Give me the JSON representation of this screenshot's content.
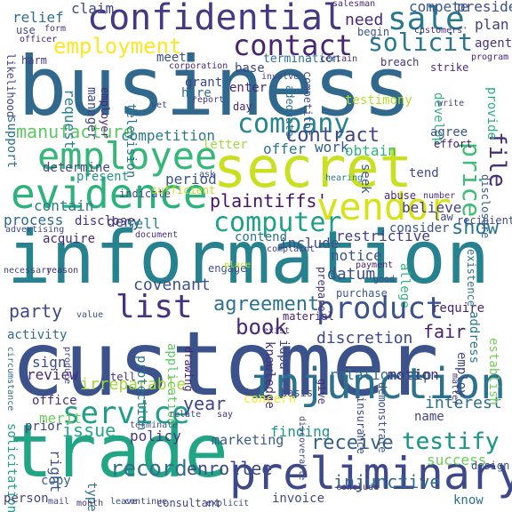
{
  "words": [
    {
      "text": "customer",
      "color": "#3b528b"
    },
    {
      "text": "information",
      "color": "#26828e"
    },
    {
      "text": "business",
      "color": "#31688e"
    },
    {
      "text": "trade",
      "color": "#21a585"
    },
    {
      "text": "secret",
      "color": "#c8e020"
    },
    {
      "text": "preliminary",
      "color": "#3e4989"
    },
    {
      "text": "injunction",
      "color": "#2c728e"
    },
    {
      "text": "confidential",
      "color": "#443983"
    },
    {
      "text": "evidence",
      "color": "#2db27d"
    },
    {
      "text": "employee",
      "color": "#35b779"
    },
    {
      "text": "vendor",
      "color": "#d8e219"
    },
    {
      "text": "service",
      "color": "#1f9e89"
    },
    {
      "text": "computer",
      "color": "#1fa088"
    },
    {
      "text": "product",
      "color": "#3b528b"
    },
    {
      "text": "sale",
      "color": "#2a788e"
    },
    {
      "text": "contact",
      "color": "#482475"
    },
    {
      "text": "list",
      "color": "#46327e"
    },
    {
      "text": "company",
      "color": "#25848e"
    },
    {
      "text": "employment",
      "color": "#fde725"
    },
    {
      "text": "solicit",
      "color": "#2a768e"
    },
    {
      "text": "price",
      "color": "#3fbc73"
    },
    {
      "text": "file",
      "color": "#472d7b"
    },
    {
      "text": "agreement",
      "color": "#2c728e"
    },
    {
      "text": "contract",
      "color": "#404688"
    },
    {
      "text": "testify",
      "color": "#1f978b"
    },
    {
      "text": "receive",
      "color": "#355f8d"
    },
    {
      "text": "record",
      "color": "#2e6e8e"
    },
    {
      "text": "enrollee",
      "color": "#3e4a89"
    },
    {
      "text": "plaintiffs'",
      "color": "#471365"
    },
    {
      "text": "book",
      "color": "#482878"
    },
    {
      "text": "injunctive",
      "color": "#31688e"
    },
    {
      "text": "show",
      "color": "#2a788e"
    },
    {
      "text": "party",
      "color": "#3e4989"
    },
    {
      "text": "issue",
      "color": "#22a884"
    },
    {
      "text": "covenant",
      "color": "#3a538b"
    },
    {
      "text": "restrictive",
      "color": "#433e85"
    },
    {
      "text": "fair",
      "color": "#482173"
    },
    {
      "text": "year",
      "color": "#414487"
    },
    {
      "text": "finding",
      "color": "#21918c"
    },
    {
      "text": "marketing",
      "color": "#38598c"
    },
    {
      "text": "manufacture",
      "color": "#5ec962"
    },
    {
      "text": "competition",
      "color": "#2a778e"
    },
    {
      "text": "datum",
      "color": "#3b518b"
    },
    {
      "text": "discretion",
      "color": "#3f4788"
    },
    {
      "text": "relationship",
      "color": "#2f6c8e"
    },
    {
      "text": "irreparable",
      "color": "#a0da39"
    },
    {
      "text": "interest",
      "color": "#2d708e"
    },
    {
      "text": "success",
      "color": "#6ccd5a"
    },
    {
      "text": "motion",
      "color": "#46307e"
    },
    {
      "text": "policy",
      "color": "#453781"
    },
    {
      "text": "need",
      "color": "#482979"
    },
    {
      "text": "relief",
      "color": "#2e6f8e"
    },
    {
      "text": "claim",
      "color": "#3f4889"
    },
    {
      "text": "compete",
      "color": "#39568c"
    },
    {
      "text": "president",
      "color": "#3d4e8a"
    },
    {
      "text": "plan",
      "color": "#433d84"
    },
    {
      "text": "agent",
      "color": "#46337f"
    },
    {
      "text": "testimony",
      "color": "#b5de2b"
    },
    {
      "text": "develop",
      "color": "#31b57b"
    },
    {
      "text": "provide",
      "color": "#26ad81"
    },
    {
      "text": "agree",
      "color": "#3b528b"
    },
    {
      "text": "effort",
      "color": "#48186a"
    },
    {
      "text": "disclosure",
      "color": "#365c8d"
    },
    {
      "text": "grant",
      "color": "#404588"
    },
    {
      "text": "hire",
      "color": "#2e6e8e"
    },
    {
      "text": "enter",
      "color": "#482576"
    },
    {
      "text": "base",
      "color": "#3e4989"
    },
    {
      "text": "termination",
      "color": "#2d708e"
    },
    {
      "text": "meet",
      "color": "#3c4f8a"
    },
    {
      "text": "manager",
      "color": "#3f4788"
    },
    {
      "text": "employer",
      "color": "#482475"
    },
    {
      "text": "request",
      "color": "#277f8e"
    },
    {
      "text": "likelihood",
      "color": "#3f4788"
    },
    {
      "text": "support",
      "color": "#2c728e"
    },
    {
      "text": "determine",
      "color": "#414487"
    },
    {
      "text": "contain",
      "color": "#2a788e"
    },
    {
      "text": "process",
      "color": "#31688e"
    },
    {
      "text": "acquire",
      "color": "#482878"
    },
    {
      "text": "present",
      "color": "#1f968b"
    },
    {
      "text": "period",
      "color": "#3b528b"
    },
    {
      "text": "deny",
      "color": "#404688"
    },
    {
      "text": "disclose",
      "color": "#46327e"
    },
    {
      "text": "sell",
      "color": "#23888e"
    },
    {
      "text": "letter",
      "color": "#9fda3a"
    },
    {
      "text": "offer",
      "color": "#2a778e"
    },
    {
      "text": "work",
      "color": "#35608d"
    },
    {
      "text": "obtain",
      "color": "#31b57b"
    },
    {
      "text": "seek",
      "color": "#38598c"
    },
    {
      "text": "tend",
      "color": "#3e4a89"
    },
    {
      "text": "believe",
      "color": "#433e85"
    },
    {
      "text": "consider",
      "color": "#39568c"
    },
    {
      "text": "contend",
      "color": "#2d718e"
    },
    {
      "text": "include",
      "color": "#3d4e8a"
    },
    {
      "text": "notice",
      "color": "#3a538b"
    },
    {
      "text": "require",
      "color": "#482173"
    },
    {
      "text": "address",
      "color": "#2a788e"
    },
    {
      "text": "establish",
      "color": "#74d055"
    },
    {
      "text": "employ",
      "color": "#3f4788"
    },
    {
      "text": "activity",
      "color": "#31688e"
    },
    {
      "text": "sign",
      "color": "#3e4989"
    },
    {
      "text": "review",
      "color": "#482878"
    },
    {
      "text": "office",
      "color": "#46307e"
    },
    {
      "text": "merit",
      "color": "#6ccd5a"
    },
    {
      "text": "prior",
      "color": "#414487"
    },
    {
      "text": "solicitation",
      "color": "#1fa088"
    },
    {
      "text": "right",
      "color": "#3b528b"
    },
    {
      "text": "copy",
      "color": "#355f8d"
    },
    {
      "text": "person",
      "color": "#414487"
    },
    {
      "text": "type",
      "color": "#2c728e"
    },
    {
      "text": "application",
      "color": "#5ec962"
    },
    {
      "text": "drawing",
      "color": "#482475"
    },
    {
      "text": "protection",
      "color": "#2a788e"
    },
    {
      "text": "knowledge",
      "color": "#46337f"
    },
    {
      "text": "idpa",
      "color": "#3f4889"
    },
    {
      "text": "allege",
      "color": "#31b57b"
    },
    {
      "text": "concern",
      "color": "#fde725"
    },
    {
      "text": "invoice",
      "color": "#3e4989"
    },
    {
      "text": "name",
      "color": "#3f4788"
    },
    {
      "text": "know",
      "color": "#2e6e8e"
    },
    {
      "text": "television",
      "color": "#2a768e"
    },
    {
      "text": "competitor",
      "color": "#3b528b"
    },
    {
      "text": "adequate",
      "color": "#2c728e"
    },
    {
      "text": "testify",
      "color": "#1f978b"
    },
    {
      "text": "use",
      "color": "#3e4a89"
    },
    {
      "text": "form",
      "color": "#46327e"
    },
    {
      "text": "officer",
      "color": "#482475"
    },
    {
      "text": "harm",
      "color": "#433d84"
    },
    {
      "text": "corporation",
      "color": "#482878"
    },
    {
      "text": "involve",
      "color": "#3e4989"
    },
    {
      "text": "certain",
      "color": "#46307e"
    },
    {
      "text": "breach",
      "color": "#46327e"
    },
    {
      "text": "salesman",
      "color": "#482878"
    },
    {
      "text": "begin",
      "color": "#3b528b"
    },
    {
      "text": "customers'",
      "color": "#46327e"
    },
    {
      "text": "program",
      "color": "#482475"
    },
    {
      "text": "strike",
      "color": "#472d7b"
    },
    {
      "text": "write",
      "color": "#414487"
    },
    {
      "text": "set",
      "color": "#3e4989"
    },
    {
      "text": "report",
      "color": "#46307e"
    },
    {
      "text": "day",
      "color": "#482576"
    },
    {
      "text": "indicate",
      "color": "#3e4a89"
    },
    {
      "text": "sufficient",
      "color": "#c2df23"
    },
    {
      "text": "ask",
      "color": "#3d4e8a"
    },
    {
      "text": "hearing",
      "color": "#2a788e"
    },
    {
      "text": "abuse",
      "color": "#482878"
    },
    {
      "text": "number",
      "color": "#46337f"
    },
    {
      "text": "recipient",
      "color": "#3e4989"
    },
    {
      "text": "law",
      "color": "#404688"
    },
    {
      "text": "advertising",
      "color": "#3f4788"
    },
    {
      "text": "document",
      "color": "#46307e"
    },
    {
      "text": "complaint",
      "color": "#414487"
    },
    {
      "text": "payment",
      "color": "#482475"
    },
    {
      "text": "engage",
      "color": "#3b528b"
    },
    {
      "text": "place",
      "color": "#c2df23"
    },
    {
      "text": "good",
      "color": "#3e4989"
    },
    {
      "text": "purchase",
      "color": "#3b528b"
    },
    {
      "text": "prepare",
      "color": "#46327e"
    },
    {
      "text": "existence",
      "color": "#2c728e"
    },
    {
      "text": "necessary",
      "color": "#414487"
    },
    {
      "text": "reason",
      "color": "#46327e"
    },
    {
      "text": "value",
      "color": "#3e4a89"
    },
    {
      "text": "material",
      "color": "#482475"
    },
    {
      "text": "exist",
      "color": "#46307e"
    },
    {
      "text": "circumstance",
      "color": "#31688e"
    },
    {
      "text": "produce",
      "color": "#3e4989"
    },
    {
      "text": "tell",
      "color": "#46327e"
    },
    {
      "text": "basis",
      "color": "#3e4989"
    },
    {
      "text": "give",
      "color": "#46307e"
    },
    {
      "text": "demonstrate",
      "color": "#3b528b"
    },
    {
      "text": "insurance",
      "color": "#3f4788"
    },
    {
      "text": "matter",
      "color": "#46327e"
    },
    {
      "text": "terminate",
      "color": "#3b528b"
    },
    {
      "text": "relate",
      "color": "#3e4989"
    },
    {
      "text": "say",
      "color": "#46307e"
    },
    {
      "text": "discoverable",
      "color": "#3e4a89"
    },
    {
      "text": "conclude",
      "color": "#46327e"
    },
    {
      "text": "design",
      "color": "#3b528b"
    },
    {
      "text": "consultant",
      "color": "#404688"
    },
    {
      "text": "explicit",
      "color": "#3e4989"
    },
    {
      "text": "month",
      "color": "#46327e"
    },
    {
      "text": "leave",
      "color": "#3b528b"
    },
    {
      "text": "continue",
      "color": "#414487"
    },
    {
      "text": "mail",
      "color": "#3e4989"
    }
  ]
}
